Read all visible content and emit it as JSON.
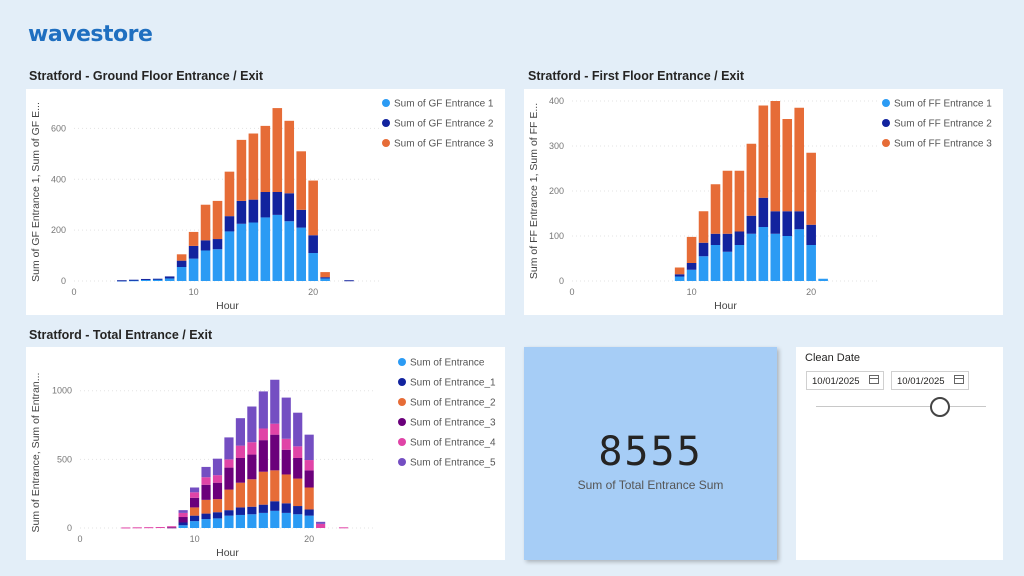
{
  "header": {
    "logo_text": "wavestore"
  },
  "colors": {
    "light_blue": "#2b9bf4",
    "dark_blue": "#12239e",
    "orange": "#e66c37",
    "purple": "#6b007b",
    "pink": "#e044a7",
    "violet": "#744ec2"
  },
  "kpi": {
    "value": "8555",
    "label": "Sum of Total Entrance Sum"
  },
  "slicer": {
    "title": "Clean Date",
    "start_date": "10/01/2025",
    "end_date": "10/01/2025",
    "start_icon": "calendar-icon",
    "end_icon": "calendar-icon"
  },
  "charts": [
    {
      "title": "Stratford - Ground Floor Entrance / Exit",
      "chart_data": {
        "type": "bar",
        "xlabel": "Hour",
        "ylabel": "Sum of GF Entrance 1, Sum of GF E...",
        "xlim": [
          0,
          24
        ],
        "ylim": [
          0,
          700
        ],
        "yticks": [
          0,
          200,
          400,
          600
        ],
        "xticks": [
          0,
          10,
          20
        ],
        "x": [
          4,
          5,
          6,
          7,
          8,
          9,
          10,
          11,
          12,
          13,
          14,
          15,
          16,
          17,
          18,
          19,
          20,
          21,
          23
        ],
        "series": [
          {
            "name": "Sum of GF Entrance 1",
            "color_key": "light_blue",
            "values": [
              2,
              3,
              5,
              6,
              10,
              55,
              88,
              120,
              125,
              195,
              225,
              230,
              250,
              260,
              235,
              210,
              110,
              10,
              0
            ]
          },
          {
            "name": "Sum of GF Entrance 2",
            "color_key": "dark_blue",
            "values": [
              1,
              2,
              3,
              3,
              8,
              25,
              50,
              40,
              40,
              60,
              90,
              90,
              100,
              90,
              110,
              70,
              70,
              5,
              3
            ]
          },
          {
            "name": "Sum of GF Entrance 3",
            "color_key": "orange",
            "values": [
              0,
              0,
              0,
              0,
              0,
              25,
              55,
              140,
              150,
              175,
              240,
              260,
              260,
              330,
              285,
              230,
              215,
              20,
              0
            ]
          }
        ]
      }
    },
    {
      "title": "Stratford - First Floor Entrance / Exit",
      "chart_data": {
        "type": "bar",
        "xlabel": "Hour",
        "ylabel": "Sum of FF Entrance 1, Sum of FF E...",
        "xlim": [
          0,
          24
        ],
        "ylim": [
          0,
          400
        ],
        "yticks": [
          0,
          100,
          200,
          300,
          400
        ],
        "xticks": [
          0,
          10,
          20
        ],
        "x": [
          9,
          10,
          11,
          12,
          13,
          14,
          15,
          16,
          17,
          18,
          19,
          20,
          21
        ],
        "series": [
          {
            "name": "Sum of FF Entrance 1",
            "color_key": "light_blue",
            "values": [
              10,
              25,
              55,
              80,
              65,
              80,
              105,
              120,
              105,
              100,
              115,
              80,
              5
            ]
          },
          {
            "name": "Sum of FF Entrance 2",
            "color_key": "dark_blue",
            "values": [
              5,
              15,
              30,
              25,
              40,
              30,
              40,
              65,
              50,
              55,
              40,
              45,
              0
            ]
          },
          {
            "name": "Sum of FF Entrance 3",
            "color_key": "orange",
            "values": [
              15,
              58,
              70,
              110,
              140,
              135,
              160,
              205,
              245,
              205,
              230,
              160,
              0
            ]
          }
        ]
      }
    },
    {
      "title": "Stratford - Total Entrance / Exit",
      "chart_data": {
        "type": "bar",
        "xlabel": "Hour",
        "ylabel": "Sum of Entrance, Sum of Entran...",
        "xlim": [
          0,
          24
        ],
        "ylim": [
          0,
          1100
        ],
        "yticks": [
          0,
          500,
          1000
        ],
        "xticks": [
          0,
          10,
          20
        ],
        "x": [
          4,
          5,
          6,
          7,
          8,
          9,
          10,
          11,
          12,
          13,
          14,
          15,
          16,
          17,
          18,
          19,
          20,
          21,
          23
        ],
        "series": [
          {
            "name": "Sum of Entrance",
            "color_key": "light_blue",
            "values": [
              0,
              0,
              0,
              0,
              0,
              20,
              50,
              65,
              70,
              90,
              95,
              100,
              110,
              125,
              110,
              100,
              90,
              0,
              0
            ]
          },
          {
            "name": "Sum of Entrance_1",
            "color_key": "dark_blue",
            "values": [
              0,
              0,
              0,
              0,
              0,
              20,
              40,
              40,
              45,
              40,
              55,
              55,
              60,
              70,
              70,
              60,
              45,
              0,
              0
            ]
          },
          {
            "name": "Sum of Entrance_2",
            "color_key": "orange",
            "values": [
              0,
              0,
              0,
              0,
              0,
              0,
              60,
              100,
              95,
              150,
              180,
              200,
              240,
              225,
              210,
              200,
              160,
              0,
              0
            ]
          },
          {
            "name": "Sum of Entrance_3",
            "color_key": "purple",
            "values": [
              0,
              0,
              0,
              0,
              5,
              40,
              70,
              110,
              120,
              160,
              180,
              180,
              230,
              260,
              180,
              150,
              125,
              0,
              0
            ]
          },
          {
            "name": "Sum of Entrance_4",
            "color_key": "pink",
            "values": [
              4,
              5,
              6,
              7,
              8,
              30,
              40,
              55,
              55,
              60,
              90,
              90,
              85,
              80,
              80,
              85,
              75,
              30,
              5
            ]
          },
          {
            "name": "Sum of Entrance_5",
            "color_key": "violet",
            "values": [
              0,
              0,
              0,
              0,
              0,
              20,
              35,
              75,
              120,
              160,
              200,
              260,
              270,
              320,
              300,
              245,
              185,
              15,
              0
            ]
          }
        ]
      }
    }
  ]
}
